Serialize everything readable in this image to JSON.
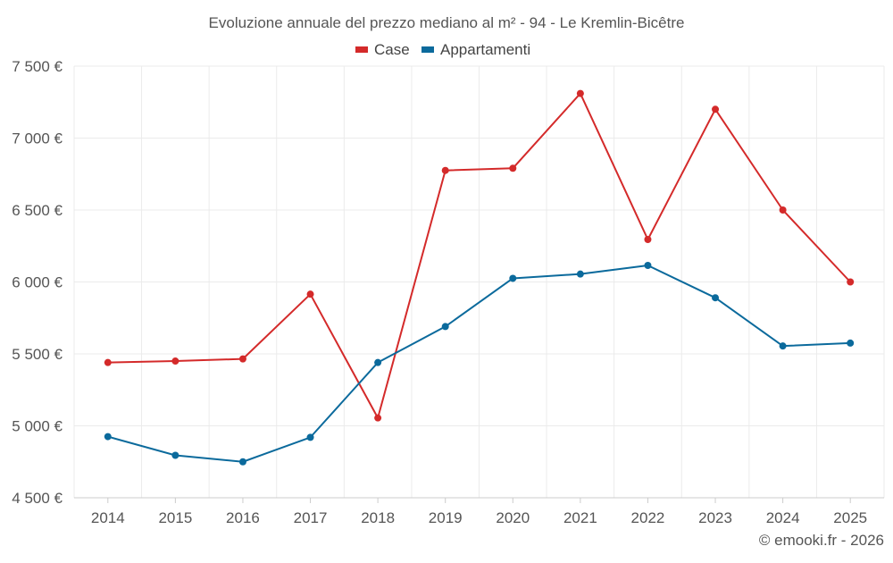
{
  "chart_data": {
    "type": "line",
    "title": "Evoluzione annuale del prezzo mediano al m² - 94 - Le Kremlin-Bicêtre",
    "categories": [
      "2014",
      "2015",
      "2016",
      "2017",
      "2018",
      "2019",
      "2020",
      "2021",
      "2022",
      "2023",
      "2024",
      "2025"
    ],
    "series": [
      {
        "name": "Case",
        "color": "#d42a2a",
        "values": [
          5440,
          5450,
          5465,
          5915,
          5055,
          6775,
          6790,
          7310,
          6295,
          7200,
          6500,
          6000
        ]
      },
      {
        "name": "Appartamenti",
        "color": "#0b6a9c",
        "values": [
          4925,
          4795,
          4750,
          4920,
          5440,
          5690,
          6025,
          6055,
          6115,
          5890,
          5555,
          5575
        ]
      }
    ],
    "ylim": [
      4500,
      7500
    ],
    "yticks": [
      4500,
      5000,
      5500,
      6000,
      6500,
      7000,
      7500
    ],
    "ytick_labels": [
      "4 500 €",
      "5 000 €",
      "5 500 €",
      "6 000 €",
      "6 500 €",
      "7 000 €",
      "7 500 €"
    ],
    "xlabel": "",
    "ylabel": "",
    "legend_position": "top-center",
    "grid": true
  },
  "footer": {
    "credit": "© emooki.fr - 2026"
  },
  "colors": {
    "grid": "#ebebeb",
    "axis": "#cccccc",
    "text": "#555555"
  }
}
